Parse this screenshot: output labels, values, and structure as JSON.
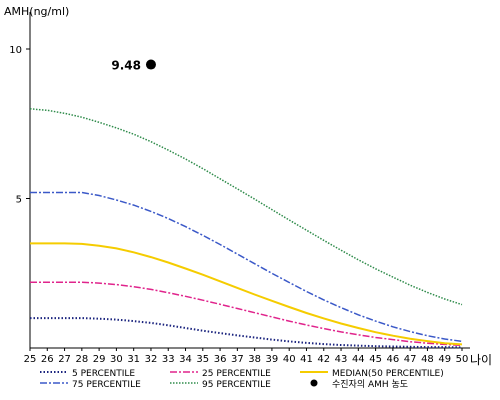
{
  "chart_data": {
    "type": "line",
    "ylabel": "AMH(ng/ml)",
    "xlabel": "나이",
    "x": [
      25,
      26,
      27,
      28,
      29,
      30,
      31,
      32,
      33,
      34,
      35,
      36,
      37,
      38,
      39,
      40,
      41,
      42,
      43,
      44,
      45,
      46,
      47,
      48,
      49,
      50
    ],
    "yticks": [
      5,
      10
    ],
    "ylim": [
      0,
      11
    ],
    "xlim": [
      25,
      50
    ],
    "series": [
      {
        "name": "5 PERCENTILE",
        "color": "#1a237e",
        "dash": "1.5,2",
        "width": 2,
        "values": [
          1.0,
          1.0,
          1.0,
          1.0,
          0.98,
          0.95,
          0.9,
          0.84,
          0.76,
          0.67,
          0.58,
          0.5,
          0.42,
          0.35,
          0.28,
          0.22,
          0.17,
          0.13,
          0.1,
          0.08,
          0.06,
          0.05,
          0.04,
          0.03,
          0.03,
          0.02
        ]
      },
      {
        "name": "75 PERCENTILE",
        "color": "#3b59c8",
        "dash": "7,2,2,2",
        "width": 1.5,
        "values": [
          5.2,
          5.2,
          5.2,
          5.2,
          5.1,
          4.95,
          4.78,
          4.57,
          4.33,
          4.06,
          3.77,
          3.46,
          3.14,
          2.82,
          2.5,
          2.19,
          1.89,
          1.61,
          1.35,
          1.11,
          0.9,
          0.71,
          0.55,
          0.41,
          0.3,
          0.22
        ]
      },
      {
        "name": "25 PERCENTILE",
        "color": "#e0248c",
        "dash": "7,2,2,2",
        "width": 1.5,
        "values": [
          2.2,
          2.2,
          2.2,
          2.2,
          2.17,
          2.12,
          2.05,
          1.96,
          1.85,
          1.73,
          1.6,
          1.46,
          1.32,
          1.18,
          1.04,
          0.9,
          0.77,
          0.65,
          0.54,
          0.44,
          0.35,
          0.28,
          0.21,
          0.16,
          0.12,
          0.09
        ]
      },
      {
        "name": "95 PERCENTILE",
        "color": "#2e8b4a",
        "dash": "1.5,1.5",
        "width": 1.5,
        "values": [
          8.0,
          7.95,
          7.85,
          7.72,
          7.55,
          7.36,
          7.15,
          6.9,
          6.62,
          6.32,
          6.0,
          5.66,
          5.32,
          4.98,
          4.63,
          4.28,
          3.94,
          3.6,
          3.27,
          2.95,
          2.65,
          2.37,
          2.1,
          1.86,
          1.64,
          1.45
        ]
      },
      {
        "name": "MEDIAN(50 PERCENTILE)",
        "color": "#f5cc00",
        "dash": "",
        "width": 2,
        "values": [
          3.5,
          3.5,
          3.5,
          3.48,
          3.42,
          3.33,
          3.2,
          3.04,
          2.86,
          2.66,
          2.45,
          2.23,
          2.01,
          1.79,
          1.58,
          1.37,
          1.17,
          0.99,
          0.82,
          0.67,
          0.53,
          0.41,
          0.31,
          0.23,
          0.16,
          0.12
        ]
      }
    ],
    "marker": {
      "x": 32,
      "y": 9.48,
      "label": "9.48",
      "legend": "수진자의 AMH 농도",
      "color": "#000000"
    }
  }
}
